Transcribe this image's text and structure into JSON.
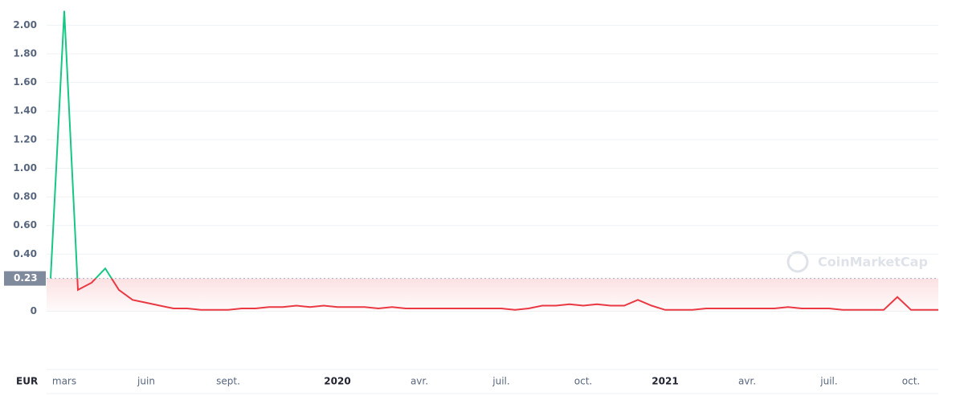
{
  "chart_data": {
    "type": "line",
    "categories": [
      null,
      "mars",
      null,
      null,
      null,
      null,
      null,
      "juin",
      null,
      null,
      null,
      null,
      null,
      "sept.",
      null,
      null,
      null,
      null,
      null,
      null,
      null,
      "2020",
      null,
      null,
      null,
      null,
      null,
      "avr.",
      null,
      null,
      null,
      null,
      null,
      "juil.",
      null,
      null,
      null,
      null,
      null,
      "oct.",
      null,
      null,
      null,
      null,
      null,
      "2021",
      null,
      null,
      null,
      null,
      null,
      "avr.",
      null,
      null,
      null,
      null,
      null,
      "juil.",
      null,
      null,
      null,
      null,
      null,
      "oct.",
      null,
      null
    ],
    "values": [
      0.23,
      2.1,
      0.15,
      0.2,
      0.3,
      0.15,
      0.08,
      0.06,
      0.04,
      0.02,
      0.02,
      0.01,
      0.01,
      0.01,
      0.02,
      0.02,
      0.03,
      0.03,
      0.04,
      0.03,
      0.04,
      0.03,
      0.03,
      0.03,
      0.02,
      0.03,
      0.02,
      0.02,
      0.02,
      0.02,
      0.02,
      0.02,
      0.02,
      0.02,
      0.01,
      0.02,
      0.04,
      0.04,
      0.05,
      0.04,
      0.05,
      0.04,
      0.04,
      0.08,
      0.04,
      0.01,
      0.01,
      0.01,
      0.02,
      0.02,
      0.02,
      0.02,
      0.02,
      0.02,
      0.03,
      0.02,
      0.02,
      0.02,
      0.01,
      0.01,
      0.01,
      0.01,
      0.1,
      0.01,
      0.01,
      0.01
    ],
    "reference": {
      "value": 0.23,
      "label": "0.23"
    },
    "up_color": "#16c784",
    "down_color": "#ea3943",
    "ylim": [
      -0.21,
      2.12
    ],
    "yticks": [
      0,
      {
        "value": 0.4,
        "label": "0.40"
      },
      {
        "value": 0.6,
        "label": "0.60"
      },
      {
        "value": 0.8,
        "label": "0.80"
      },
      {
        "value": 1,
        "label": "1.00"
      },
      {
        "value": 1.2,
        "label": "1.20"
      },
      {
        "value": 1.4,
        "label": "1.40"
      },
      {
        "value": 1.6,
        "label": "1.60"
      },
      {
        "value": 1.8,
        "label": "1.80"
      },
      {
        "value": 2,
        "label": "2.00"
      }
    ],
    "grid": true,
    "currency": "EUR",
    "watermark": "CoinMarketCap"
  }
}
